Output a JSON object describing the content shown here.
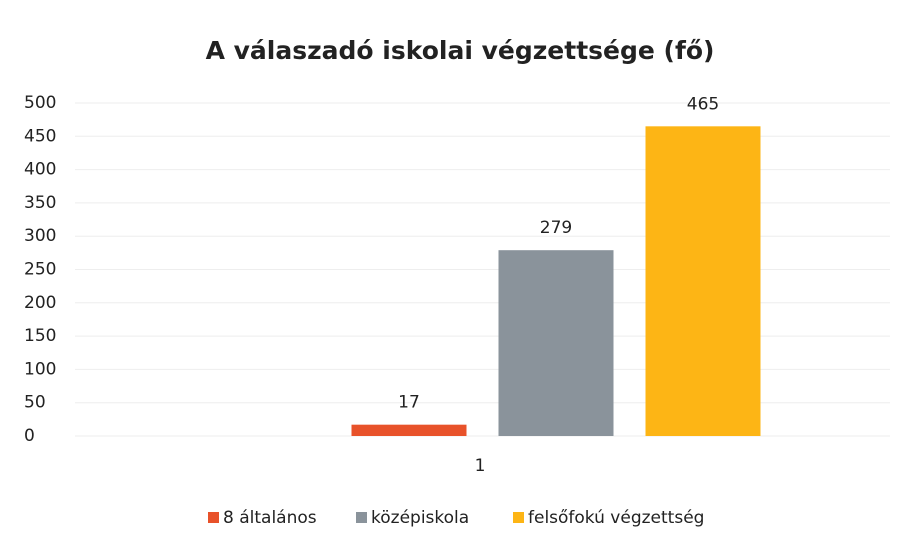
{
  "chart_data": {
    "type": "bar",
    "title": "A válaszadó iskolai végzettsége (fő)",
    "categories": [
      "1"
    ],
    "series": [
      {
        "name": "8 általános",
        "color": "#e8522a",
        "values": [
          17
        ]
      },
      {
        "name": "középiskola",
        "color": "#8a939b",
        "values": [
          279
        ]
      },
      {
        "name": "felsőfokú végzettség",
        "color": "#fdb515",
        "values": [
          465
        ]
      }
    ],
    "ylim": [
      0,
      500
    ],
    "yticks": [
      0,
      50,
      100,
      150,
      200,
      250,
      300,
      350,
      400,
      450,
      500
    ],
    "grid": true,
    "legend": "bottom"
  }
}
